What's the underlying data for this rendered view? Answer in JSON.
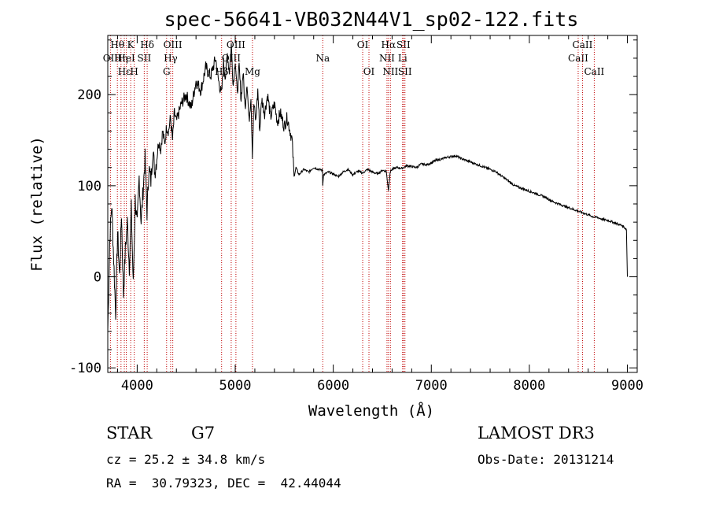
{
  "chart_data": {
    "type": "line",
    "title": "spec-56641-VB032N44V1_sp02-122.fits",
    "xlabel": "Wavelength (Å)",
    "ylabel": "Flux (relative)",
    "xlim": [
      3700,
      9100
    ],
    "ylim": [
      -105,
      265
    ],
    "xticks": [
      4000,
      5000,
      6000,
      7000,
      8000,
      9000
    ],
    "yticks": [
      -100,
      0,
      100,
      200
    ],
    "grid": false,
    "series": [
      {
        "x": [
          3700,
          3720,
          3740,
          3760,
          3780,
          3800,
          3820,
          3840,
          3860,
          3880,
          3900,
          3920,
          3940,
          3960,
          3980,
          4000,
          4020,
          4040,
          4060,
          4080,
          4100,
          4120,
          4140,
          4160,
          4180,
          4200,
          4220,
          4240,
          4260,
          4280,
          4300,
          4320,
          4340,
          4360,
          4380,
          4400,
          4450,
          4500,
          4550,
          4600,
          4650,
          4700,
          4750,
          4800,
          4830,
          4861,
          4880,
          4900,
          4920,
          4940,
          4960,
          4980,
          5000,
          5020,
          5040,
          5060,
          5080,
          5100,
          5120,
          5140,
          5160,
          5175,
          5190,
          5210,
          5230,
          5250,
          5270,
          5300,
          5330,
          5360,
          5400,
          5430,
          5460,
          5500,
          5530,
          5560,
          5580,
          5600,
          5620,
          5650,
          5700,
          5750,
          5800,
          5850,
          5890,
          5893,
          5900,
          5950,
          6000,
          6050,
          6100,
          6150,
          6200,
          6250,
          6300,
          6350,
          6400,
          6450,
          6500,
          6540,
          6563,
          6580,
          6600,
          6650,
          6700,
          6750,
          6800,
          6850,
          6900,
          6950,
          7000,
          7050,
          7100,
          7150,
          7200,
          7250,
          7300,
          7350,
          7400,
          7450,
          7500,
          7550,
          7600,
          7650,
          7700,
          7750,
          7800,
          7850,
          7900,
          7950,
          8000,
          8050,
          8100,
          8150,
          8200,
          8250,
          8300,
          8350,
          8400,
          8450,
          8500,
          8550,
          8600,
          8650,
          8700,
          8750,
          8800,
          8850,
          8900,
          8950,
          8990,
          9000
        ],
        "y": [
          -60,
          40,
          80,
          20,
          -40,
          50,
          0,
          70,
          -20,
          30,
          60,
          10,
          75,
          -10,
          85,
          55,
          110,
          60,
          95,
          130,
          70,
          120,
          105,
          140,
          115,
          130,
          150,
          140,
          160,
          145,
          165,
          160,
          175,
          150,
          180,
          170,
          190,
          200,
          185,
          215,
          205,
          230,
          220,
          240,
          215,
          200,
          235,
          220,
          245,
          225,
          255,
          210,
          240,
          200,
          230,
          195,
          225,
          185,
          215,
          170,
          200,
          135,
          190,
          170,
          205,
          160,
          195,
          180,
          200,
          175,
          190,
          170,
          180,
          165,
          175,
          160,
          150,
          110,
          120,
          112,
          118,
          115,
          120,
          118,
          117,
          100,
          112,
          115,
          113,
          110,
          115,
          118,
          112,
          116,
          114,
          118,
          115,
          113,
          117,
          116,
          95,
          115,
          118,
          120,
          119,
          122,
          121,
          120,
          124,
          123,
          125,
          128,
          129,
          131,
          132,
          133,
          130,
          128,
          126,
          124,
          122,
          120,
          118,
          116,
          112,
          108,
          104,
          100,
          98,
          96,
          94,
          92,
          90,
          88,
          85,
          82,
          80,
          78,
          76,
          74,
          72,
          70,
          68,
          66,
          65,
          63,
          62,
          60,
          58,
          56,
          52,
          0
        ]
      }
    ],
    "lines": [
      {
        "w": 3727,
        "label": "OII",
        "row": 1
      },
      {
        "w": 3798,
        "label": "Hθ",
        "row": 0
      },
      {
        "w": 3835,
        "label": "Hη",
        "row": 1
      },
      {
        "w": 3869,
        "label": "Hε",
        "row": 2
      },
      {
        "w": 3889,
        "label": "HeI",
        "row": 1
      },
      {
        "w": 3934,
        "label": "K",
        "row": 0
      },
      {
        "w": 3970,
        "label": "H",
        "row": 2
      },
      {
        "w": 4072,
        "label": "SII",
        "row": 1
      },
      {
        "w": 4102,
        "label": "Hδ",
        "row": 0
      },
      {
        "w": 4300,
        "label": "G",
        "row": 2
      },
      {
        "w": 4341,
        "label": "Hγ",
        "row": 1
      },
      {
        "w": 4363,
        "label": "OIII",
        "row": 0
      },
      {
        "w": 4861,
        "label": "Hβ",
        "row": 2
      },
      {
        "w": 4959,
        "label": "OIII",
        "row": 1
      },
      {
        "w": 5007,
        "label": "OIII",
        "row": 0
      },
      {
        "w": 5176,
        "label": "Mg",
        "row": 2
      },
      {
        "w": 5893,
        "label": "Na",
        "row": 1
      },
      {
        "w": 6300,
        "label": "OI",
        "row": 0
      },
      {
        "w": 6364,
        "label": "OI",
        "row": 2
      },
      {
        "w": 6548,
        "label": "NII",
        "row": 1
      },
      {
        "w": 6563,
        "label": "Hα",
        "row": 0
      },
      {
        "w": 6583,
        "label": "NII",
        "row": 2
      },
      {
        "w": 6707,
        "label": "Li",
        "row": 1
      },
      {
        "w": 6716,
        "label": "SII",
        "row": 0
      },
      {
        "w": 6731,
        "label": "SII",
        "row": 2
      },
      {
        "w": 8498,
        "label": "CaII",
        "row": 1
      },
      {
        "w": 8542,
        "label": "CaII",
        "row": 0
      },
      {
        "w": 8662,
        "label": "CaII",
        "row": 2
      }
    ],
    "line_color": "#c00000"
  },
  "info": {
    "class": "STAR",
    "subclass": "G7",
    "survey": "LAMOST DR3",
    "redshift": "cz = 25.2 ± 34.8 km/s",
    "obsdate": "Obs-Date: 20131214",
    "coords": "RA =  30.79323, DEC =  42.44044"
  }
}
